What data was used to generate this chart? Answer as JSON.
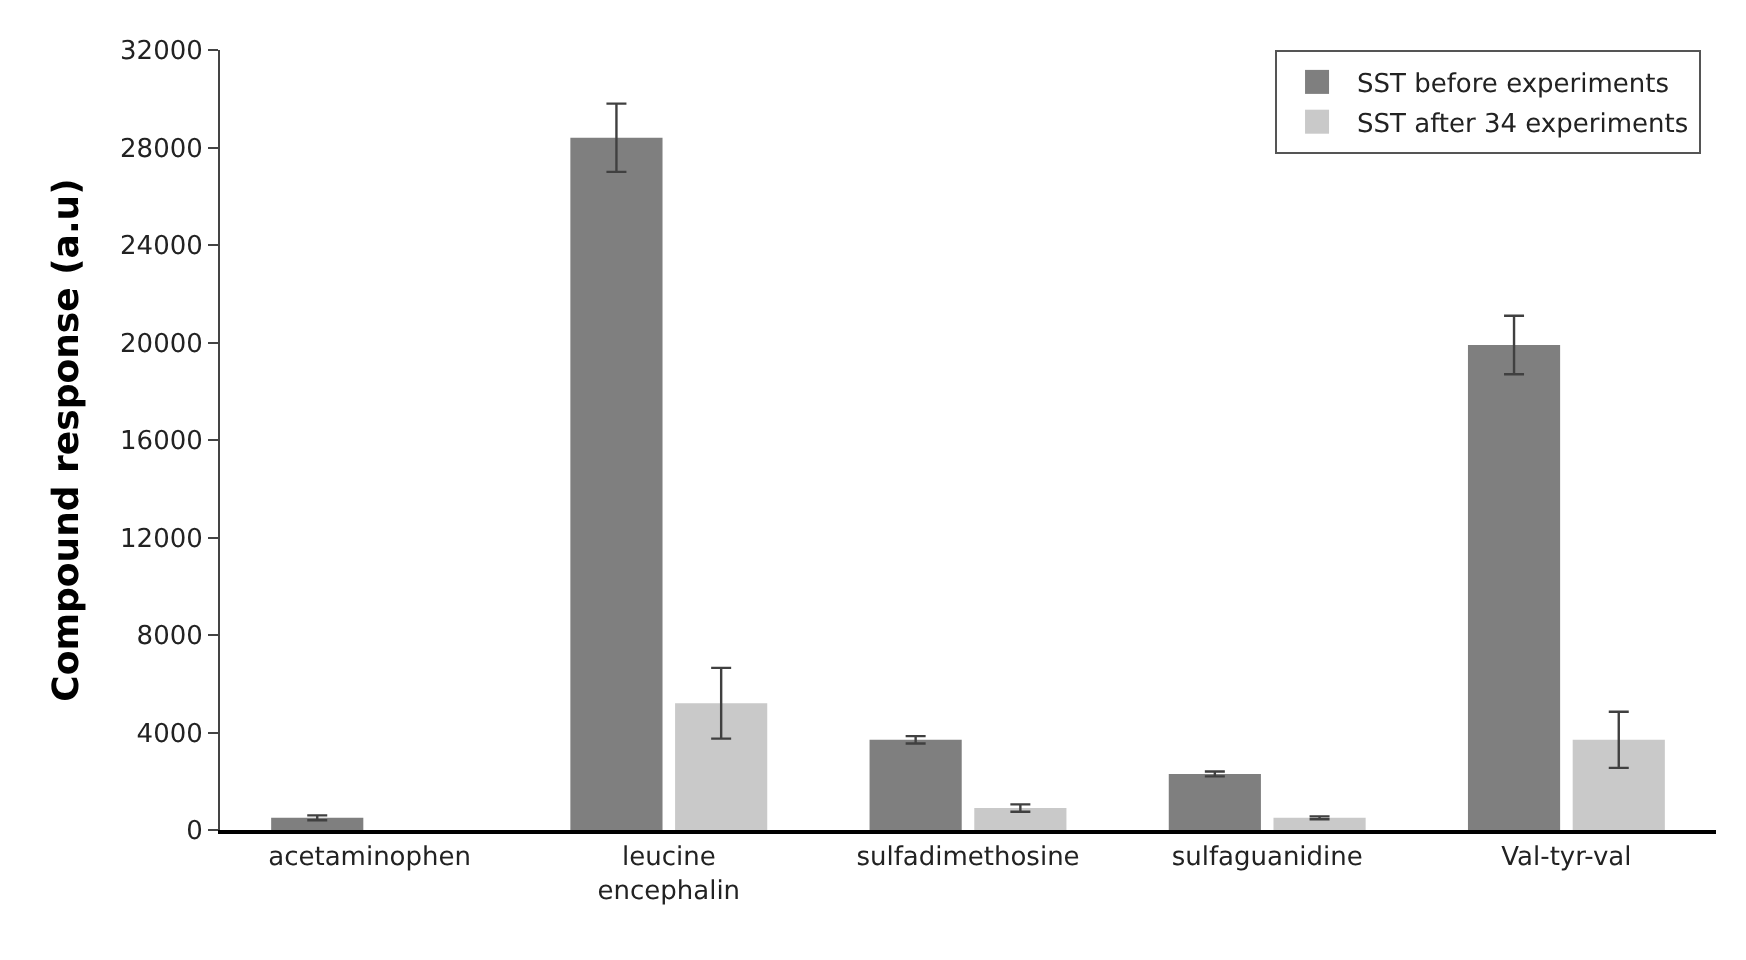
{
  "chart_data": {
    "type": "bar",
    "ylabel": "Compound response (a.u)",
    "categories": [
      "acetaminophen",
      "leucine encephalin",
      "sulfadimethosine",
      "sulfaguanidine",
      "Val-tyr-val"
    ],
    "series": [
      {
        "name": "SST before experiments",
        "color": "#7f7f7f",
        "values": [
          500,
          28400,
          3700,
          2300,
          19900
        ],
        "errors": [
          100,
          1400,
          150,
          100,
          1200
        ]
      },
      {
        "name": "SST after 34 experiments",
        "color": "#c9c9c9",
        "values": [
          null,
          5200,
          900,
          500,
          3700
        ],
        "errors": [
          null,
          1450,
          150,
          60,
          1150
        ]
      }
    ],
    "ylim": [
      0,
      32000
    ],
    "yticks": [
      0,
      4000,
      8000,
      12000,
      16000,
      20000,
      24000,
      28000,
      32000
    ],
    "legend": "top right"
  }
}
